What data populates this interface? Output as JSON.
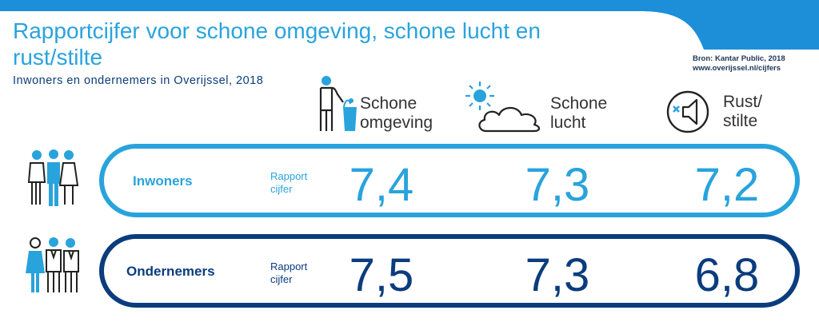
{
  "title": "Rapportcijfer voor schone omgeving, schone lucht en rust/stilte",
  "subtitle": "Inwoners en ondernemers in Overijssel, 2018",
  "source": {
    "line1": "Bron: Kantar Public, 2018",
    "line2": "www.overijssel.nl/cijfers"
  },
  "colors": {
    "light_blue": "#29a3dc",
    "dark_blue": "#0b3c7d",
    "band": "#1d8fd8"
  },
  "columns": [
    {
      "icon": "person-watering-can-icon",
      "line1": "Schone",
      "line2": "omgeving"
    },
    {
      "icon": "sun-cloud-icon",
      "line1": "Schone",
      "line2": "lucht"
    },
    {
      "icon": "muted-speaker-icon",
      "line1": "Rust/",
      "line2": "stilte"
    }
  ],
  "rows": [
    {
      "label": "Inwoners",
      "icon": "residents-group-icon",
      "rapport_line1": "Rapport",
      "rapport_line2": "cijfer",
      "values": [
        "7,4",
        "7,3",
        "7,2"
      ]
    },
    {
      "label": "Ondernemers",
      "icon": "entrepreneurs-group-icon",
      "rapport_line1": "Rapport",
      "rapport_line2": "cijfer",
      "values": [
        "7,5",
        "7,3",
        "6,8"
      ]
    }
  ]
}
